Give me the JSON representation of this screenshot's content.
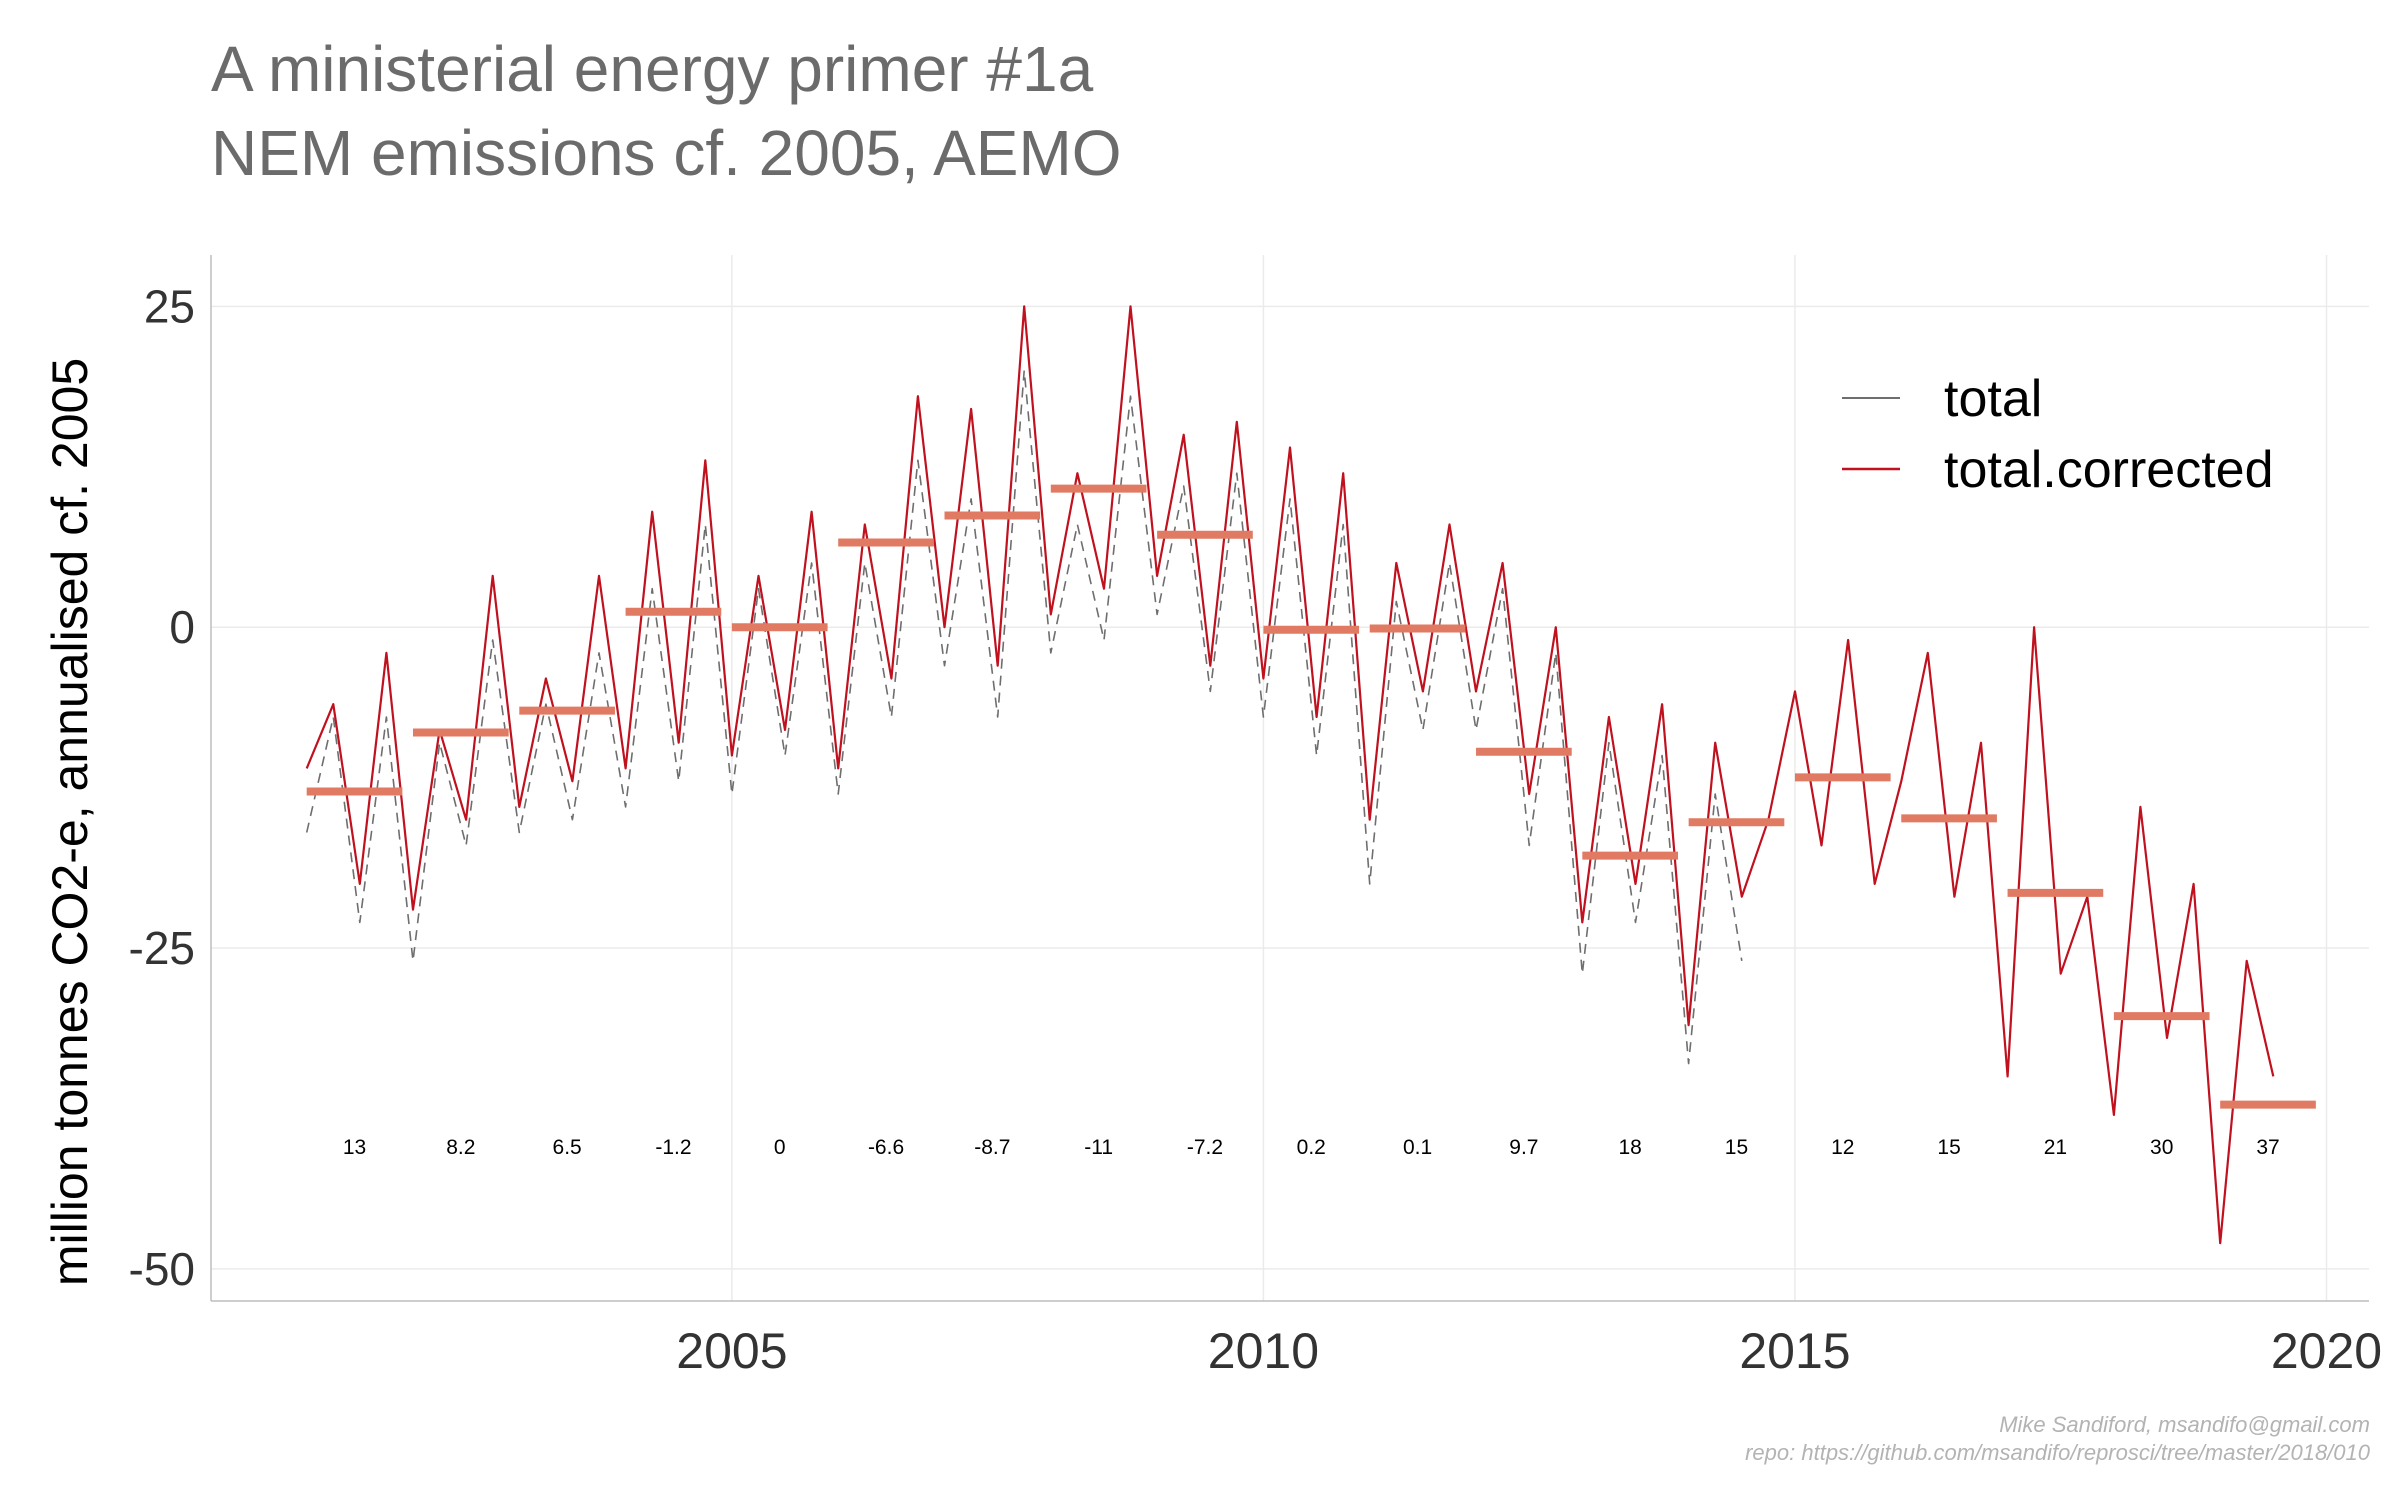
{
  "title": "A ministerial energy primer #1a",
  "subtitle": "NEM emissions cf. 2005, AEMO",
  "caption_line1": "Mike Sandiford, msandifo@gmail.com",
  "caption_line2": "repo: https://github.com/msandifo/reprosci/tree/master/2018/010",
  "chart_data": {
    "type": "line",
    "xlabel": "",
    "ylabel": "million tonnes CO2-e, annualised cf. 2005",
    "xlim": [
      2000.1,
      2020.4
    ],
    "ylim": [
      -52.5,
      29
    ],
    "xticks": [
      2005,
      2010,
      2015,
      2020
    ],
    "yticks": [
      -50,
      -25,
      0,
      25
    ],
    "grid": true,
    "legend_position": "top-right",
    "colors": {
      "total": "#6e6e6e",
      "total.corrected": "#c0111f",
      "annual_mean": "#e07a62"
    },
    "series": [
      {
        "name": "total",
        "style": "dashed",
        "x": [
          2001.0,
          2001.25,
          2001.5,
          2001.75,
          2002.0,
          2002.25,
          2002.5,
          2002.75,
          2003.0,
          2003.25,
          2003.5,
          2003.75,
          2004.0,
          2004.25,
          2004.5,
          2004.75,
          2005.0,
          2005.25,
          2005.5,
          2005.75,
          2006.0,
          2006.25,
          2006.5,
          2006.75,
          2007.0,
          2007.25,
          2007.5,
          2007.75,
          2008.0,
          2008.25,
          2008.5,
          2008.75,
          2009.0,
          2009.25,
          2009.5,
          2009.75,
          2010.0,
          2010.25,
          2010.5,
          2010.75,
          2011.0,
          2011.25,
          2011.5,
          2011.75,
          2012.0,
          2012.25,
          2012.5,
          2012.75,
          2013.0,
          2013.25,
          2013.5,
          2013.75,
          2014.0,
          2014.25,
          2014.5
        ],
        "y": [
          -16,
          -7,
          -23,
          -7,
          -26,
          -9,
          -17,
          -1,
          -16,
          -6,
          -15,
          -2,
          -14,
          3,
          -12,
          8,
          -13,
          3,
          -10,
          5,
          -13,
          5,
          -7,
          13,
          -3,
          10,
          -7,
          20,
          -2,
          8,
          -1,
          18,
          1,
          11,
          -5,
          12,
          -7,
          10,
          -10,
          8,
          -20,
          2,
          -8,
          5,
          -8,
          3,
          -17,
          -2,
          -27,
          -9,
          -23,
          -10,
          -34,
          -13,
          -26
        ]
      },
      {
        "name": "total.corrected",
        "style": "solid",
        "x": [
          2001.0,
          2001.25,
          2001.5,
          2001.75,
          2002.0,
          2002.25,
          2002.5,
          2002.75,
          2003.0,
          2003.25,
          2003.5,
          2003.75,
          2004.0,
          2004.25,
          2004.5,
          2004.75,
          2005.0,
          2005.25,
          2005.5,
          2005.75,
          2006.0,
          2006.25,
          2006.5,
          2006.75,
          2007.0,
          2007.25,
          2007.5,
          2007.75,
          2008.0,
          2008.25,
          2008.5,
          2008.75,
          2009.0,
          2009.25,
          2009.5,
          2009.75,
          2010.0,
          2010.25,
          2010.5,
          2010.75,
          2011.0,
          2011.25,
          2011.5,
          2011.75,
          2012.0,
          2012.25,
          2012.5,
          2012.75,
          2013.0,
          2013.25,
          2013.5,
          2013.75,
          2014.0,
          2014.25,
          2014.5,
          2014.75,
          2015.0,
          2015.25,
          2015.5,
          2015.75,
          2016.0,
          2016.25,
          2016.5,
          2016.75,
          2017.0,
          2017.25,
          2017.5,
          2017.75,
          2018.0,
          2018.25,
          2018.5,
          2018.75,
          2019.0,
          2019.25,
          2019.5
        ],
        "y": [
          -11,
          -6,
          -20,
          -2,
          -22,
          -8,
          -15,
          4,
          -14,
          -4,
          -12,
          4,
          -11,
          9,
          -9,
          13,
          -10,
          4,
          -8,
          9,
          -11,
          8,
          -4,
          18,
          0,
          17,
          -3,
          25,
          1,
          12,
          3,
          25,
          4,
          15,
          -3,
          16,
          -4,
          14,
          -7,
          12,
          -15,
          5,
          -5,
          8,
          -5,
          5,
          -13,
          0,
          -23,
          -7,
          -20,
          -6,
          -31,
          -9,
          -21,
          -15,
          -5,
          -17,
          -1,
          -20,
          -12,
          -2,
          -21,
          -9,
          -35,
          0,
          -27,
          -21,
          -38,
          -14,
          -32,
          -20,
          -48,
          -26,
          -35
        ]
      }
    ],
    "annual_means": [
      {
        "year": 2001,
        "value": -12.8,
        "label": "13"
      },
      {
        "year": 2002,
        "value": -8.2,
        "label": "8.2"
      },
      {
        "year": 2003,
        "value": -6.5,
        "label": "6.5"
      },
      {
        "year": 2004,
        "value": 1.2,
        "label": "-1.2"
      },
      {
        "year": 2005,
        "value": 0,
        "label": "0"
      },
      {
        "year": 2006,
        "value": 6.6,
        "label": "-6.6"
      },
      {
        "year": 2007,
        "value": 8.7,
        "label": "-8.7"
      },
      {
        "year": 2008,
        "value": 10.8,
        "label": "-11"
      },
      {
        "year": 2009,
        "value": 7.2,
        "label": "-7.2"
      },
      {
        "year": 2010,
        "value": -0.2,
        "label": "0.2"
      },
      {
        "year": 2011,
        "value": -0.1,
        "label": "0.1"
      },
      {
        "year": 2012,
        "value": -9.7,
        "label": "9.7"
      },
      {
        "year": 2013,
        "value": -17.8,
        "label": "18"
      },
      {
        "year": 2014,
        "value": -15.2,
        "label": "15"
      },
      {
        "year": 2015,
        "value": -11.7,
        "label": "12"
      },
      {
        "year": 2016,
        "value": -14.9,
        "label": "15"
      },
      {
        "year": 2017,
        "value": -20.7,
        "label": "21"
      },
      {
        "year": 2018,
        "value": -30.3,
        "label": "30"
      },
      {
        "year": 2019,
        "value": -37.2,
        "label": "37"
      }
    ],
    "annotation_y": -40.5
  }
}
